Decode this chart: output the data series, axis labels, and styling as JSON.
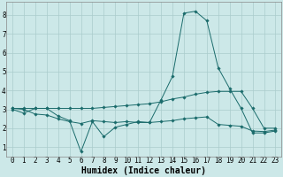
{
  "xlabel": "Humidex (Indice chaleur)",
  "ylabel": "",
  "background_color": "#cce8e8",
  "grid_color": "#aacccc",
  "line_color": "#1a6b6b",
  "x_values": [
    0,
    1,
    2,
    3,
    4,
    5,
    6,
    7,
    8,
    9,
    10,
    11,
    12,
    13,
    14,
    15,
    16,
    17,
    18,
    19,
    20,
    21,
    22,
    23
  ],
  "line1": [
    3.0,
    2.8,
    3.05,
    3.05,
    2.65,
    2.4,
    0.75,
    2.35,
    1.55,
    2.05,
    2.2,
    2.35,
    2.3,
    3.5,
    4.75,
    8.1,
    8.2,
    7.7,
    5.2,
    4.1,
    3.05,
    1.75,
    1.75,
    1.85
  ],
  "line2": [
    3.05,
    3.05,
    3.05,
    3.05,
    3.05,
    3.05,
    3.05,
    3.05,
    3.1,
    3.15,
    3.2,
    3.25,
    3.3,
    3.4,
    3.55,
    3.65,
    3.8,
    3.9,
    3.95,
    3.95,
    3.95,
    3.05,
    2.0,
    2.0
  ],
  "line3": [
    3.05,
    3.0,
    2.75,
    2.7,
    2.5,
    2.35,
    2.25,
    2.4,
    2.35,
    2.3,
    2.35,
    2.3,
    2.3,
    2.35,
    2.4,
    2.5,
    2.55,
    2.6,
    2.2,
    2.15,
    2.1,
    1.85,
    1.82,
    1.9
  ],
  "ylim": [
    0.5,
    8.7
  ],
  "xlim": [
    -0.5,
    23.5
  ],
  "yticks": [
    1,
    2,
    3,
    4,
    5,
    6,
    7,
    8
  ],
  "xticks": [
    0,
    1,
    2,
    3,
    4,
    5,
    6,
    7,
    8,
    9,
    10,
    11,
    12,
    13,
    14,
    15,
    16,
    17,
    18,
    19,
    20,
    21,
    22,
    23
  ],
  "xlabel_fontsize": 7,
  "tick_fontsize": 5.5
}
